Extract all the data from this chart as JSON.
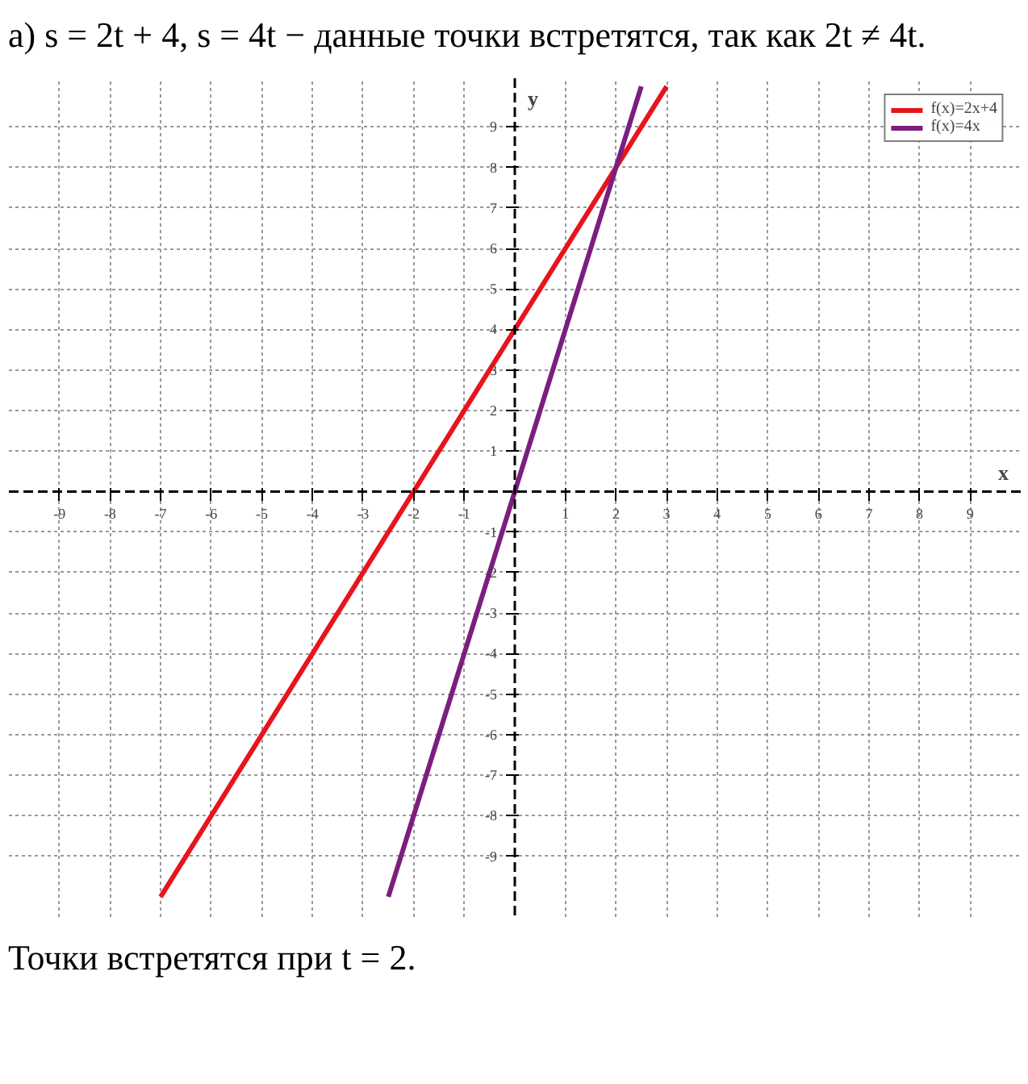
{
  "chart_data": {
    "type": "line",
    "title": "а) s = 2t + 4,     s = 4t − данные точки встретятся, так как 2t ≠ 4t.",
    "annotations": [
      "Точки встретятся при t = 2."
    ],
    "xlim": [
      -10,
      10
    ],
    "ylim": [
      -10.5,
      10.2
    ],
    "xticks": [
      -9,
      -8,
      -7,
      -6,
      -5,
      -4,
      -3,
      -2,
      -1,
      1,
      2,
      3,
      4,
      5,
      6,
      7,
      8,
      9
    ],
    "yticks": [
      -9,
      -8,
      -7,
      -6,
      -5,
      -4,
      -3,
      -2,
      -1,
      1,
      2,
      3,
      4,
      5,
      6,
      7,
      8,
      9
    ],
    "ref_lines": [
      {
        "axis": "y",
        "value": 0,
        "label": "x",
        "color": "#000000",
        "line_style": "dashed"
      },
      {
        "axis": "x",
        "value": 0,
        "label": "y",
        "color": "#000000",
        "line_style": "dashed"
      }
    ],
    "grid": true,
    "legend": "top right",
    "line_style": "solid",
    "series": [
      {
        "name": "f(x)=2x+4",
        "color": "#e8141c",
        "x": [
          -7,
          3
        ],
        "values": [
          -10,
          10
        ]
      },
      {
        "name": "f(x)=4x",
        "color": "#7b1e7e",
        "x": [
          -2.5,
          2.5
        ],
        "values": [
          -10,
          10
        ]
      }
    ]
  }
}
